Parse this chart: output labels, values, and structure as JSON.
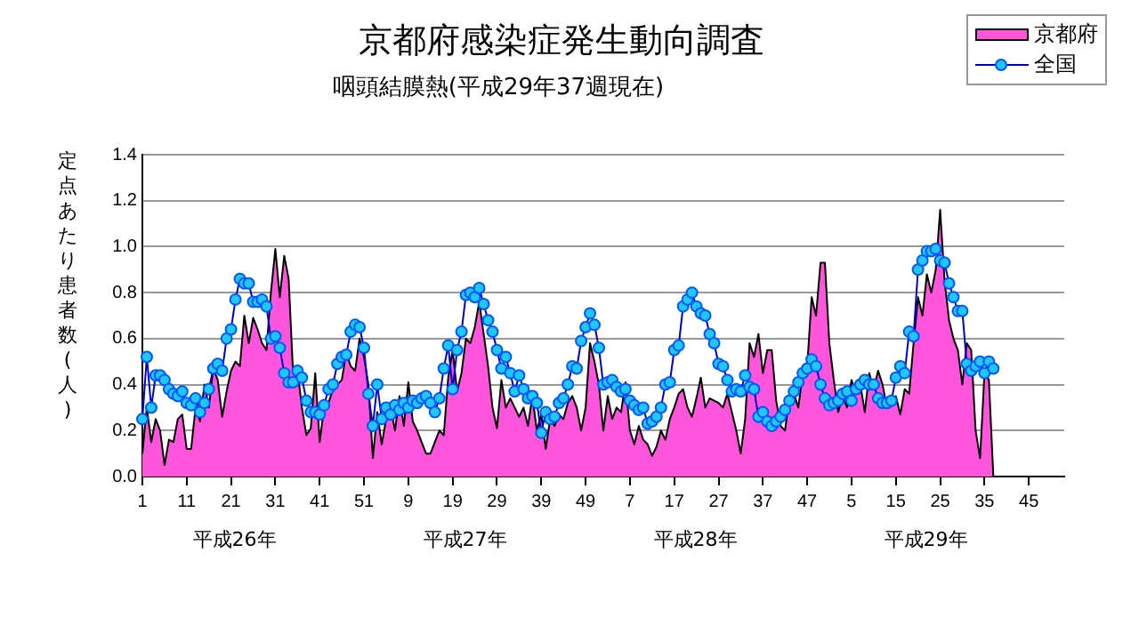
{
  "chart_data": {
    "type": "area",
    "title": "京都府感染症発生動向調査",
    "subtitle": "咽頭結膜熱(平成29年37週現在)",
    "ylabel": "定点あたり患者数(人)",
    "categories": [
      "1",
      null,
      null,
      null,
      null,
      null,
      null,
      null,
      null,
      null,
      "11",
      null,
      null,
      null,
      null,
      null,
      null,
      null,
      null,
      null,
      "21",
      null,
      null,
      null,
      null,
      null,
      null,
      null,
      null,
      null,
      "31",
      null,
      null,
      null,
      null,
      null,
      null,
      null,
      null,
      null,
      "41",
      null,
      null,
      null,
      null,
      null,
      null,
      null,
      null,
      null,
      "51",
      null,
      null,
      null,
      null,
      null,
      null,
      null,
      null,
      null,
      "9",
      null,
      null,
      null,
      null,
      null,
      null,
      null,
      null,
      null,
      "19",
      null,
      null,
      null,
      null,
      null,
      null,
      null,
      null,
      null,
      "29",
      null,
      null,
      null,
      null,
      null,
      null,
      null,
      null,
      null,
      "39",
      null,
      null,
      null,
      null,
      null,
      null,
      null,
      null,
      null,
      "49",
      null,
      null,
      null,
      null,
      null,
      null,
      null,
      null,
      null,
      "7",
      null,
      null,
      null,
      null,
      null,
      null,
      null,
      null,
      null,
      "17",
      null,
      null,
      null,
      null,
      null,
      null,
      null,
      null,
      null,
      "27",
      null,
      null,
      null,
      null,
      null,
      null,
      null,
      null,
      null,
      "37",
      null,
      null,
      null,
      null,
      null,
      null,
      null,
      null,
      null,
      "47",
      null,
      null,
      null,
      null,
      null,
      null,
      null,
      null,
      null,
      "5",
      null,
      null,
      null,
      null,
      null,
      null,
      null,
      null,
      null,
      "15",
      null,
      null,
      null,
      null,
      null,
      null,
      null,
      null,
      null,
      "25",
      null,
      null,
      null,
      null,
      null,
      null,
      null,
      null,
      null,
      "35",
      null,
      null,
      null,
      null,
      null,
      null,
      null,
      null,
      null,
      "45",
      null,
      null,
      null,
      null,
      null,
      null,
      null,
      null
    ],
    "series": [
      {
        "name": "京都府",
        "color": "#ff55dd",
        "values": [
          0.1,
          0.3,
          0.15,
          0.25,
          0.2,
          0.05,
          0.16,
          0.15,
          0.25,
          0.27,
          0.12,
          0.12,
          0.3,
          0.24,
          0.4,
          0.3,
          0.47,
          0.42,
          0.26,
          0.37,
          0.46,
          0.5,
          0.48,
          0.7,
          0.58,
          0.69,
          0.64,
          0.58,
          0.55,
          0.8,
          0.99,
          0.78,
          0.96,
          0.86,
          0.45,
          0.46,
          0.3,
          0.18,
          0.21,
          0.45,
          0.15,
          0.3,
          0.32,
          0.38,
          0.4,
          0.42,
          0.54,
          0.48,
          0.46,
          0.6,
          0.52,
          0.4,
          0.08,
          0.28,
          0.14,
          0.25,
          0.3,
          0.2,
          0.35,
          0.22,
          0.41,
          0.24,
          0.2,
          0.15,
          0.1,
          0.1,
          0.15,
          0.2,
          0.18,
          0.43,
          0.55,
          0.37,
          0.45,
          0.6,
          0.58,
          0.65,
          0.76,
          0.62,
          0.48,
          0.3,
          0.21,
          0.42,
          0.3,
          0.34,
          0.3,
          0.26,
          0.3,
          0.22,
          0.35,
          0.2,
          0.27,
          0.12,
          0.25,
          0.22,
          0.27,
          0.25,
          0.32,
          0.35,
          0.3,
          0.2,
          0.3,
          0.58,
          0.5,
          0.4,
          0.2,
          0.35,
          0.25,
          0.3,
          0.28,
          0.41,
          0.2,
          0.14,
          0.22,
          0.16,
          0.14,
          0.09,
          0.13,
          0.2,
          0.16,
          0.25,
          0.3,
          0.36,
          0.38,
          0.3,
          0.26,
          0.34,
          0.43,
          0.3,
          0.34,
          0.33,
          0.32,
          0.3,
          0.36,
          0.28,
          0.2,
          0.1,
          0.25,
          0.58,
          0.52,
          0.62,
          0.45,
          0.55,
          0.55,
          0.33,
          0.22,
          0.2,
          0.35,
          0.36,
          0.3,
          0.45,
          0.48,
          0.78,
          0.7,
          0.93,
          0.93,
          0.58,
          0.42,
          0.28,
          0.35,
          0.3,
          0.42,
          0.36,
          0.4,
          0.28,
          0.45,
          0.38,
          0.46,
          0.4,
          0.3,
          0.32,
          0.35,
          0.27,
          0.38,
          0.36,
          0.58,
          0.78,
          0.7,
          0.88,
          0.8,
          0.9,
          1.16,
          0.85,
          0.68,
          0.6,
          0.55,
          0.4,
          0.58,
          0.55,
          0.2,
          0.08,
          0.45,
          0.42,
          0,
          null,
          null,
          null,
          null,
          null,
          null,
          null,
          null,
          null,
          null,
          null,
          null,
          null,
          null,
          null,
          null
        ]
      },
      {
        "name": "全国",
        "type": "line",
        "color": "#1ec8ff",
        "marker": "circle",
        "values": [
          0.25,
          0.52,
          0.3,
          0.44,
          0.44,
          0.42,
          0.38,
          0.36,
          0.35,
          0.37,
          0.32,
          0.31,
          0.34,
          0.28,
          0.32,
          0.38,
          0.47,
          0.49,
          0.46,
          0.6,
          0.64,
          0.77,
          0.86,
          0.84,
          0.84,
          0.76,
          0.76,
          0.77,
          0.74,
          0.6,
          0.61,
          0.56,
          0.45,
          0.41,
          0.41,
          0.46,
          0.43,
          0.33,
          0.28,
          0.28,
          0.27,
          0.31,
          0.38,
          0.4,
          0.49,
          0.52,
          0.53,
          0.63,
          0.66,
          0.65,
          0.56,
          0.36,
          0.22,
          0.4,
          0.25,
          0.3,
          0.27,
          0.31,
          0.29,
          0.32,
          0.3,
          0.33,
          0.32,
          0.34,
          0.35,
          0.32,
          0.28,
          0.34,
          0.47,
          0.57,
          0.38,
          0.55,
          0.63,
          0.79,
          0.8,
          0.78,
          0.82,
          0.75,
          0.68,
          0.63,
          0.55,
          0.47,
          0.52,
          0.45,
          0.37,
          0.44,
          0.38,
          0.34,
          0.35,
          0.32,
          0.19,
          0.28,
          0.25,
          0.26,
          0.32,
          0.34,
          0.4,
          0.48,
          0.47,
          0.59,
          0.65,
          0.71,
          0.66,
          0.56,
          0.4,
          0.41,
          0.42,
          0.39,
          0.37,
          0.38,
          0.33,
          0.31,
          0.29,
          0.3,
          0.23,
          0.24,
          0.26,
          0.3,
          0.4,
          0.41,
          0.55,
          0.57,
          0.74,
          0.77,
          0.8,
          0.74,
          0.71,
          0.7,
          0.62,
          0.58,
          0.49,
          0.48,
          0.42,
          0.37,
          0.38,
          0.37,
          0.44,
          0.39,
          0.38,
          0.26,
          0.28,
          0.24,
          0.22,
          0.24,
          0.26,
          0.29,
          0.33,
          0.37,
          0.41,
          0.45,
          0.47,
          0.51,
          0.48,
          0.4,
          0.34,
          0.31,
          0.32,
          0.33,
          0.36,
          0.37,
          0.33,
          0.38,
          0.4,
          0.42,
          0.4,
          0.4,
          0.34,
          0.32,
          0.32,
          0.33,
          0.43,
          0.48,
          0.45,
          0.63,
          0.61,
          0.9,
          0.94,
          0.98,
          0.98,
          0.99,
          0.94,
          0.93,
          0.84,
          0.78,
          0.72,
          0.72,
          0.49,
          0.46,
          0.48,
          0.5,
          0.45,
          0.5,
          0.47,
          null,
          null,
          null,
          null,
          null,
          null,
          null,
          null,
          null,
          null,
          null,
          null,
          null,
          null,
          null,
          null
        ]
      }
    ],
    "ylim": [
      0,
      1.4
    ],
    "yticks": [
      {
        "value": 0,
        "label": "0.0"
      },
      {
        "value": 0.2,
        "label": "0.2"
      },
      {
        "value": 0.4,
        "label": "0.4"
      },
      {
        "value": 0.6,
        "label": "0.6"
      },
      {
        "value": 0.8,
        "label": "0.8"
      },
      {
        "value": 1.0,
        "label": "1.0"
      },
      {
        "value": 1.2,
        "label": "1.2"
      },
      {
        "value": 1.4,
        "label": "1.4"
      }
    ],
    "annotations": [
      "平成26年",
      "平成27年",
      "平成28年",
      "平成29年"
    ],
    "grid": "y",
    "legend": "top right"
  }
}
